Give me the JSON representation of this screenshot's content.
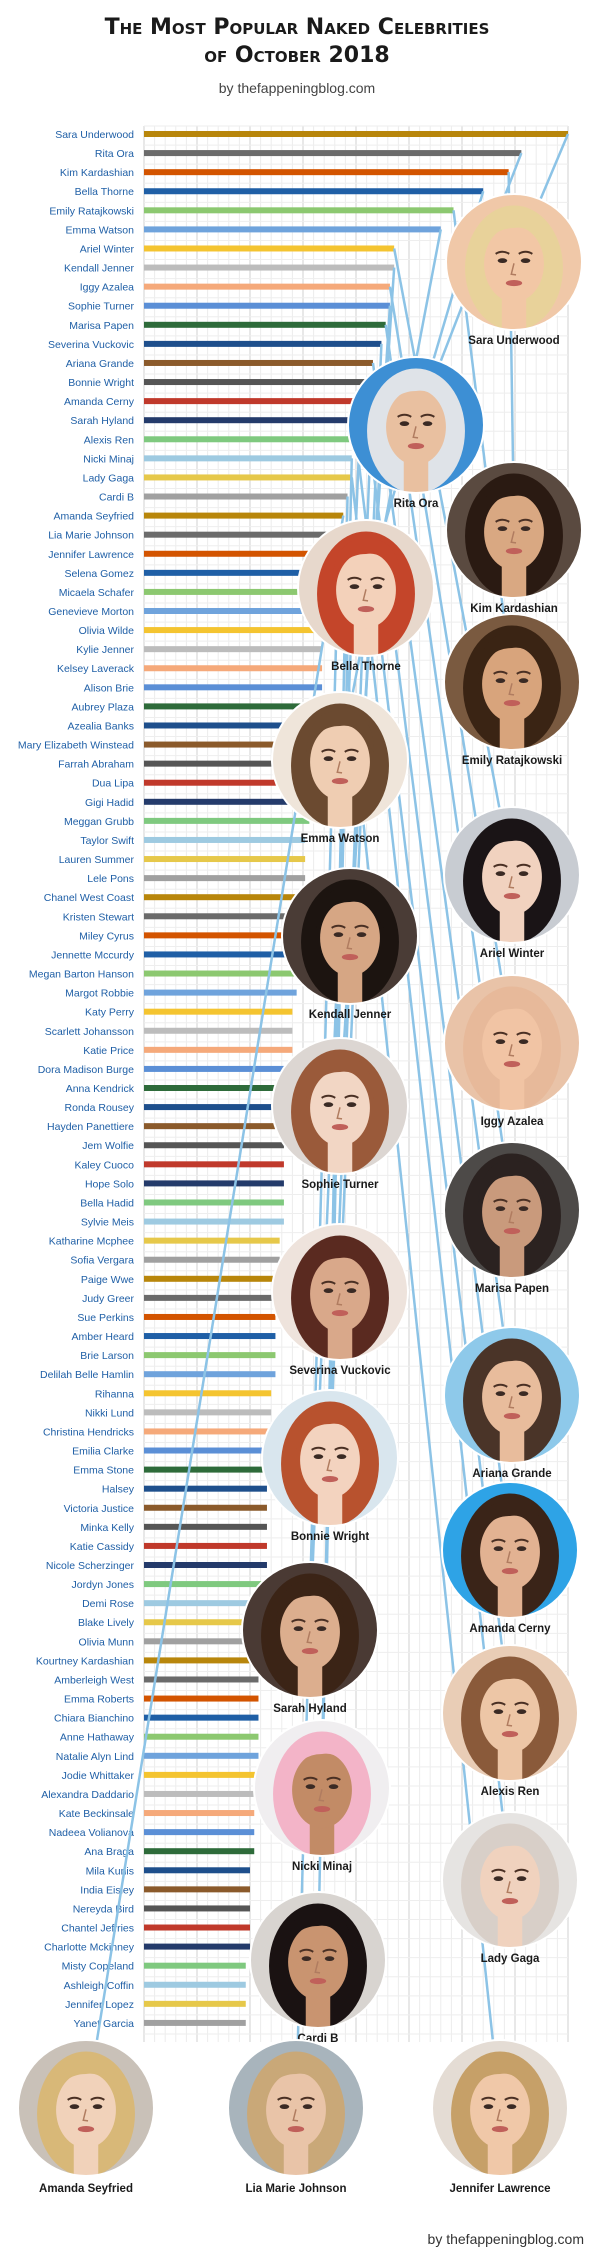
{
  "header": {
    "title_line1": "The Most Popular Naked Celebrities",
    "title_line2": "of October 2018",
    "subtitle": "by thefappeningblog.com"
  },
  "footer": {
    "credit": "by thefappeningblog.com"
  },
  "chart_data": {
    "type": "bar",
    "orientation": "horizontal",
    "title": "The Most Popular Naked Celebrities of October 2018",
    "xlabel": "",
    "ylabel": "",
    "grid": true,
    "xlim": [
      0,
      100
    ],
    "categories": [
      "Sara Underwood",
      "Rita Ora",
      "Kim Kardashian",
      "Bella Thorne",
      "Emily Ratajkowski",
      "Emma Watson",
      "Ariel Winter",
      "Kendall Jenner",
      "Iggy Azalea",
      "Sophie Turner",
      "Marisa Papen",
      "Severina Vuckovic",
      "Ariana Grande",
      "Bonnie Wright",
      "Amanda Cerny",
      "Sarah Hyland",
      "Alexis Ren",
      "Nicki Minaj",
      "Lady Gaga",
      "Cardi B",
      "Amanda Seyfried",
      "Lia Marie Johnson",
      "Jennifer Lawrence",
      "Selena Gomez",
      "Micaela Schafer",
      "Genevieve Morton",
      "Olivia Wilde",
      "Kylie Jenner",
      "Kelsey Laverack",
      "Alison Brie",
      "Aubrey Plaza",
      "Azealia Banks",
      "Mary Elizabeth Winstead",
      "Farrah Abraham",
      "Dua Lipa",
      "Gigi Hadid",
      "Meggan Grubb",
      "Taylor Swift",
      "Lauren Summer",
      "Lele Pons",
      "Chanel West Coast",
      "Kristen Stewart",
      "Miley Cyrus",
      "Jennette Mccurdy",
      "Megan Barton Hanson",
      "Margot Robbie",
      "Katy Perry",
      "Scarlett Johansson",
      "Katie Price",
      "Dora Madison Burge",
      "Anna Kendrick",
      "Ronda Rousey",
      "Hayden Panettiere",
      "Jem Wolfie",
      "Kaley Cuoco",
      "Hope Solo",
      "Bella Hadid",
      "Sylvie Meis",
      "Katharine Mcphee",
      "Sofia Vergara",
      "Paige Wwe",
      "Judy Greer",
      "Sue Perkins",
      "Amber Heard",
      "Brie Larson",
      "Delilah Belle Hamlin",
      "Rihanna",
      "Nikki Lund",
      "Christina Hendricks",
      "Emilia Clarke",
      "Emma Stone",
      "Halsey",
      "Victoria Justice",
      "Minka Kelly",
      "Katie Cassidy",
      "Nicole Scherzinger",
      "Jordyn Jones",
      "Demi Rose",
      "Blake Lively",
      "Olivia Munn",
      "Kourtney Kardashian",
      "Amberleigh West",
      "Emma Roberts",
      "Chiara Bianchino",
      "Anne Hathaway",
      "Natalie Alyn Lind",
      "Jodie Whittaker",
      "Alexandra Daddario",
      "Kate Beckinsale",
      "Nadeea Volianova",
      "Ana Braga",
      "Mila Kunis",
      "India Eisley",
      "Nereyda Bird",
      "Chantel Jeffries",
      "Charlotte Mckinney",
      "Misty Copeland",
      "Ashleigh Coffin",
      "Jennifer Lopez",
      "Yanet Garcia"
    ],
    "values": [
      100,
      89,
      86,
      80,
      73,
      70,
      59,
      59,
      58,
      58,
      57,
      56,
      54,
      54,
      52,
      51,
      50,
      49,
      49,
      48,
      47,
      46,
      45,
      44,
      44,
      43,
      43,
      42,
      42,
      42,
      41,
      41,
      40,
      40,
      40,
      39,
      39,
      38,
      38,
      38,
      37,
      37,
      37,
      36,
      36,
      36,
      35,
      35,
      35,
      34,
      34,
      34,
      34,
      33,
      33,
      33,
      33,
      33,
      32,
      32,
      32,
      32,
      31,
      31,
      31,
      31,
      30,
      30,
      30,
      30,
      30,
      29,
      29,
      29,
      29,
      29,
      28,
      28,
      28,
      28,
      28,
      27,
      27,
      27,
      27,
      27,
      27,
      26,
      26,
      26,
      26,
      25,
      25,
      25,
      25,
      25,
      24,
      24,
      24,
      24
    ],
    "colors": [
      "#b8860b",
      "#6b6b6b",
      "#d35400",
      "#1f5fa6",
      "#8cc870",
      "#6fa3dc",
      "#f4c430",
      "#bcbcbc",
      "#f5a97a",
      "#5b8fd6",
      "#2e6b3a",
      "#1e4f8c",
      "#8b5a2b",
      "#555555",
      "#c0392b",
      "#243b6b",
      "#7fc97f",
      "#9ecae1",
      "#e6c84a",
      "#a0a0a0"
    ]
  },
  "portraits": [
    {
      "name": "Sara Underwood",
      "bg": "#f0c8a8",
      "hair": "#e8d29a",
      "skin": "#f2c7a5"
    },
    {
      "name": "Rita Ora",
      "bg": "#3d8fd4",
      "hair": "#dfe3e8",
      "skin": "#e9c0a0"
    },
    {
      "name": "Kim Kardashian",
      "bg": "#5a4a40",
      "hair": "#2a1a12",
      "skin": "#d9a882"
    },
    {
      "name": "Bella Thorne",
      "bg": "#e7d8cc",
      "hair": "#c4452a",
      "skin": "#f3d1ba"
    },
    {
      "name": "Emily Ratajkowski",
      "bg": "#7a5a40",
      "hair": "#3a2414",
      "skin": "#d8a47c"
    },
    {
      "name": "Emma Watson",
      "bg": "#efe5da",
      "hair": "#6b4a30",
      "skin": "#efcdb2"
    },
    {
      "name": "Ariel Winter",
      "bg": "#c8ccd2",
      "hair": "#1a1416",
      "skin": "#f1d2bf"
    },
    {
      "name": "Kendall Jenner",
      "bg": "#4a3c36",
      "hair": "#1c1410",
      "skin": "#d6a684"
    },
    {
      "name": "Iggy Azalea",
      "bg": "#e9c3a8",
      "hair": "#e7b99a",
      "skin": "#f1c4a4"
    },
    {
      "name": "Sophie Turner",
      "bg": "#dcd6d2",
      "hair": "#9a5a3a",
      "skin": "#f2d6c4"
    },
    {
      "name": "Marisa Papen",
      "bg": "#4d4a48",
      "hair": "#2b2220",
      "skin": "#c99a7c"
    },
    {
      "name": "Severina Vuckovic",
      "bg": "#eee3dc",
      "hair": "#5a2a20",
      "skin": "#d9a88a"
    },
    {
      "name": "Ariana Grande",
      "bg": "#8ec9ea",
      "hair": "#4a3428",
      "skin": "#e8bc9c"
    },
    {
      "name": "Bonnie Wright",
      "bg": "#d9e6ee",
      "hair": "#b8522e",
      "skin": "#f3d3bf"
    },
    {
      "name": "Amanda Cerny",
      "bg": "#2ea3e6",
      "hair": "#3a2418",
      "skin": "#e2b292"
    },
    {
      "name": "Sarah Hyland",
      "bg": "#4a3a34",
      "hair": "#3b2416",
      "skin": "#dcae8e"
    },
    {
      "name": "Alexis Ren",
      "bg": "#e9cdb6",
      "hair": "#8a5a3a",
      "skin": "#edc6a6"
    },
    {
      "name": "Nicki Minaj",
      "bg": "#f0eef0",
      "hair": "#f3b4c8",
      "skin": "#c28b66"
    },
    {
      "name": "Lady Gaga",
      "bg": "#e6e4e2",
      "hair": "#d8cfc8",
      "skin": "#f0d2be"
    },
    {
      "name": "Cardi B",
      "bg": "#d8d4d0",
      "hair": "#1a1212",
      "skin": "#c99470"
    },
    {
      "name": "Amanda Seyfried",
      "bg": "#c9c1b8",
      "hair": "#d8b878",
      "skin": "#f1d2ba"
    },
    {
      "name": "Lia Marie Johnson",
      "bg": "#a8b4bc",
      "hair": "#c9a878",
      "skin": "#e9c4a8"
    },
    {
      "name": "Jennifer Lawrence",
      "bg": "#e4dcd4",
      "hair": "#c6a068",
      "skin": "#f0c8a8"
    }
  ]
}
